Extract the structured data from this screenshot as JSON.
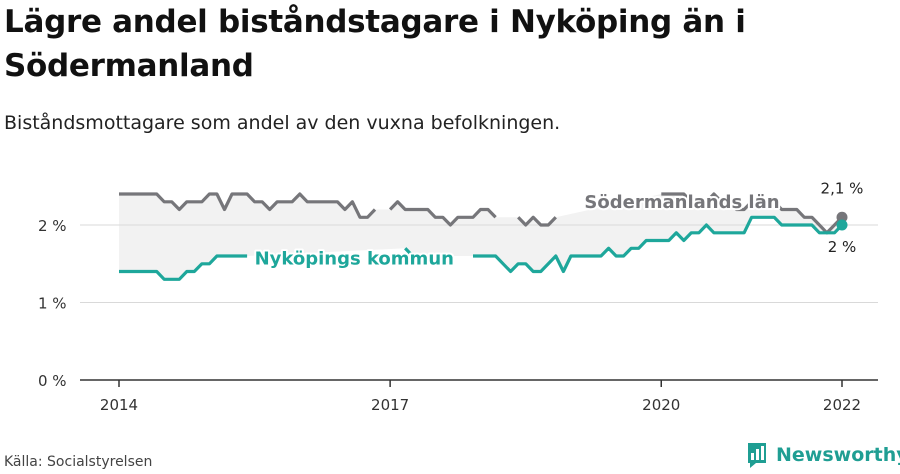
{
  "title": "Lägre andel biståndstagare i Nyköping än i Södermanland",
  "subtitle": "Biståndsmottagare som andel av den vuxna befolkningen.",
  "source": "Källa: Socialstyrelsen",
  "brand": "Newsworthy",
  "colors": {
    "lan": "#76767a",
    "kommun": "#1ea79b",
    "band": "#f2f2f2",
    "grid": "#d9d9d9",
    "axis": "#333333"
  },
  "chart_data": {
    "type": "line",
    "y_ticks": [
      {
        "value": 0,
        "label": "0 %"
      },
      {
        "value": 1,
        "label": "1 %"
      },
      {
        "value": 2,
        "label": "2 %"
      }
    ],
    "x_ticks": [
      {
        "value": 2014,
        "label": "2014"
      },
      {
        "value": 2017,
        "label": "2017"
      },
      {
        "value": 2020,
        "label": "2020"
      },
      {
        "value": 2022,
        "label": "2022"
      }
    ],
    "xlim": [
      2014,
      2022
    ],
    "ylim": [
      0,
      2.6
    ],
    "series": [
      {
        "name": "Södermanlands län",
        "color_key": "lan",
        "end_label": "2,1 %",
        "values": [
          [
            2014.0,
            2.4
          ],
          [
            2014.083,
            2.4
          ],
          [
            2014.167,
            2.4
          ],
          [
            2014.25,
            2.4
          ],
          [
            2014.333,
            2.4
          ],
          [
            2014.417,
            2.4
          ],
          [
            2014.5,
            2.3
          ],
          [
            2014.583,
            2.3
          ],
          [
            2014.667,
            2.2
          ],
          [
            2014.75,
            2.3
          ],
          [
            2014.833,
            2.3
          ],
          [
            2014.917,
            2.3
          ],
          [
            2015.0,
            2.4
          ],
          [
            2015.083,
            2.4
          ],
          [
            2015.167,
            2.2
          ],
          [
            2015.25,
            2.4
          ],
          [
            2015.333,
            2.4
          ],
          [
            2015.417,
            2.4
          ],
          [
            2015.5,
            2.3
          ],
          [
            2015.583,
            2.3
          ],
          [
            2015.667,
            2.2
          ],
          [
            2015.75,
            2.3
          ],
          [
            2015.833,
            2.3
          ],
          [
            2015.917,
            2.3
          ],
          [
            2016.0,
            2.4
          ],
          [
            2016.083,
            2.3
          ],
          [
            2016.167,
            2.3
          ],
          [
            2016.25,
            2.3
          ],
          [
            2016.333,
            2.3
          ],
          [
            2016.417,
            2.3
          ],
          [
            2016.5,
            2.2
          ],
          [
            2016.583,
            2.3
          ],
          [
            2016.667,
            2.1
          ],
          [
            2016.75,
            2.1
          ],
          [
            2016.833,
            2.2
          ],
          null,
          [
            2017.0,
            2.2
          ],
          [
            2017.083,
            2.3
          ],
          [
            2017.167,
            2.2
          ],
          [
            2017.25,
            2.2
          ],
          [
            2017.333,
            2.2
          ],
          [
            2017.417,
            2.2
          ],
          [
            2017.5,
            2.1
          ],
          [
            2017.583,
            2.1
          ],
          [
            2017.667,
            2.0
          ],
          [
            2017.75,
            2.1
          ],
          [
            2017.833,
            2.1
          ],
          [
            2017.917,
            2.1
          ],
          [
            2018.0,
            2.2
          ],
          [
            2018.083,
            2.2
          ],
          [
            2018.167,
            2.1
          ],
          null,
          [
            2018.417,
            2.1
          ],
          [
            2018.5,
            2.0
          ],
          [
            2018.583,
            2.1
          ],
          [
            2018.667,
            2.0
          ],
          [
            2018.75,
            2.0
          ],
          [
            2018.833,
            2.1
          ],
          null,
          [
            2020.0,
            2.4
          ],
          [
            2020.083,
            2.4
          ],
          [
            2020.167,
            2.4
          ],
          [
            2020.25,
            2.4
          ],
          [
            2020.333,
            2.3
          ],
          [
            2020.417,
            2.3
          ],
          [
            2020.5,
            2.3
          ],
          [
            2020.583,
            2.4
          ],
          [
            2020.667,
            2.3
          ],
          [
            2020.75,
            2.3
          ],
          [
            2020.833,
            2.2
          ],
          [
            2020.917,
            2.2
          ],
          [
            2021.0,
            2.3
          ],
          [
            2021.083,
            2.3
          ],
          [
            2021.167,
            2.3
          ],
          [
            2021.25,
            2.3
          ],
          [
            2021.333,
            2.2
          ],
          [
            2021.417,
            2.2
          ],
          [
            2021.5,
            2.2
          ],
          [
            2021.583,
            2.1
          ],
          [
            2021.667,
            2.1
          ],
          [
            2021.75,
            2.0
          ],
          [
            2021.833,
            1.9
          ],
          [
            2021.917,
            2.0
          ],
          [
            2022.0,
            2.1
          ]
        ]
      },
      {
        "name": "Nyköpings kommun",
        "color_key": "kommun",
        "end_label": "2 %",
        "values": [
          [
            2014.0,
            1.4
          ],
          [
            2014.083,
            1.4
          ],
          [
            2014.167,
            1.4
          ],
          [
            2014.25,
            1.4
          ],
          [
            2014.333,
            1.4
          ],
          [
            2014.417,
            1.4
          ],
          [
            2014.5,
            1.3
          ],
          [
            2014.583,
            1.3
          ],
          [
            2014.667,
            1.3
          ],
          [
            2014.75,
            1.4
          ],
          [
            2014.833,
            1.4
          ],
          [
            2014.917,
            1.5
          ],
          [
            2015.0,
            1.5
          ],
          [
            2015.083,
            1.6
          ],
          [
            2015.167,
            1.6
          ],
          [
            2015.25,
            1.6
          ],
          [
            2015.333,
            1.6
          ],
          [
            2015.417,
            1.6
          ],
          null,
          [
            2017.167,
            1.7
          ],
          [
            2017.25,
            1.6
          ],
          null,
          [
            2017.917,
            1.6
          ],
          [
            2018.0,
            1.6
          ],
          [
            2018.083,
            1.6
          ],
          [
            2018.167,
            1.6
          ],
          [
            2018.25,
            1.5
          ],
          [
            2018.333,
            1.4
          ],
          [
            2018.417,
            1.5
          ],
          [
            2018.5,
            1.5
          ],
          [
            2018.583,
            1.4
          ],
          [
            2018.667,
            1.4
          ],
          [
            2018.75,
            1.5
          ],
          [
            2018.833,
            1.6
          ],
          [
            2018.917,
            1.4
          ],
          [
            2019.0,
            1.6
          ],
          [
            2019.083,
            1.6
          ],
          [
            2019.167,
            1.6
          ],
          [
            2019.25,
            1.6
          ],
          [
            2019.333,
            1.6
          ],
          [
            2019.417,
            1.7
          ],
          [
            2019.5,
            1.6
          ],
          [
            2019.583,
            1.6
          ],
          [
            2019.667,
            1.7
          ],
          [
            2019.75,
            1.7
          ],
          [
            2019.833,
            1.8
          ],
          [
            2019.917,
            1.8
          ],
          [
            2020.0,
            1.8
          ],
          [
            2020.083,
            1.8
          ],
          [
            2020.167,
            1.9
          ],
          [
            2020.25,
            1.8
          ],
          [
            2020.333,
            1.9
          ],
          [
            2020.417,
            1.9
          ],
          [
            2020.5,
            2.0
          ],
          [
            2020.583,
            1.9
          ],
          [
            2020.667,
            1.9
          ],
          [
            2020.75,
            1.9
          ],
          [
            2020.833,
            1.9
          ],
          [
            2020.917,
            1.9
          ],
          [
            2021.0,
            2.1
          ],
          [
            2021.083,
            2.1
          ],
          [
            2021.167,
            2.1
          ],
          [
            2021.25,
            2.1
          ],
          [
            2021.333,
            2.0
          ],
          [
            2021.417,
            2.0
          ],
          [
            2021.5,
            2.0
          ],
          [
            2021.583,
            2.0
          ],
          [
            2021.667,
            2.0
          ],
          [
            2021.75,
            1.9
          ],
          [
            2021.833,
            1.9
          ],
          [
            2021.917,
            1.9
          ],
          [
            2022.0,
            2.0
          ]
        ]
      }
    ],
    "inline_labels": [
      {
        "series": 0,
        "text": "Södermanlands län",
        "x": 2019.15,
        "y": 2.22
      },
      {
        "series": 1,
        "text": "Nyköpings kommun",
        "x": 2015.5,
        "y": 1.49
      }
    ]
  }
}
